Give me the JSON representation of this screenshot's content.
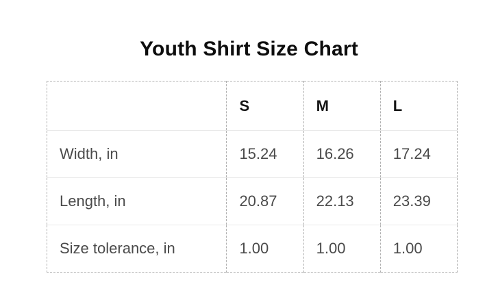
{
  "title": "Youth Shirt Size Chart",
  "table": {
    "columns": [
      "",
      "S",
      "M",
      "L"
    ],
    "rows": [
      {
        "label": "Width, in",
        "values": [
          "15.24",
          "16.26",
          "17.24"
        ]
      },
      {
        "label": "Length, in",
        "values": [
          "20.87",
          "22.13",
          "23.39"
        ]
      },
      {
        "label": "Size tolerance, in",
        "values": [
          "1.00",
          "1.00",
          "1.00"
        ]
      }
    ]
  },
  "colors": {
    "background": "#ffffff",
    "title_text": "#0d0d0d",
    "header_text": "#141414",
    "cell_text": "#4a4a4a",
    "dashed_border": "#b0b0b0",
    "row_separator": "#e9e9e9"
  },
  "chart_data": {
    "type": "table",
    "title": "Youth Shirt Size Chart",
    "columns": [
      "S",
      "M",
      "L"
    ],
    "rows": [
      {
        "label": "Width, in",
        "values": [
          15.24,
          16.26,
          17.24
        ]
      },
      {
        "label": "Length, in",
        "values": [
          20.87,
          22.13,
          23.39
        ]
      },
      {
        "label": "Size tolerance, in",
        "values": [
          1.0,
          1.0,
          1.0
        ]
      }
    ],
    "units": "in"
  }
}
